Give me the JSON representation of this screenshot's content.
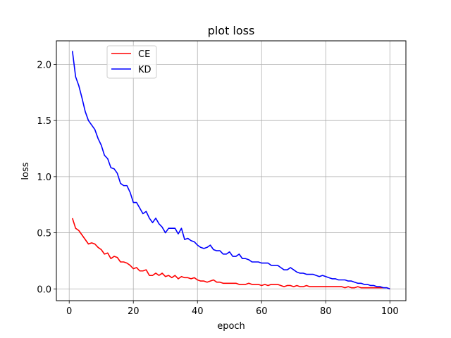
{
  "chart_data": {
    "type": "line",
    "title": "plot loss",
    "xlabel": "epoch",
    "ylabel": "loss",
    "xlim": [
      -4,
      105
    ],
    "ylim": [
      -0.105,
      2.21
    ],
    "x_ticks": [
      0,
      20,
      40,
      60,
      80,
      100
    ],
    "x_tick_labels": [
      "0",
      "20",
      "40",
      "60",
      "80",
      "100"
    ],
    "y_ticks": [
      0.0,
      0.5,
      1.0,
      1.5,
      2.0
    ],
    "y_tick_labels": [
      "0.0",
      "0.5",
      "1.0",
      "1.5",
      "2.0"
    ],
    "grid": true,
    "legend_position": "upper left",
    "series": [
      {
        "name": "CE",
        "color": "#ff0000",
        "x": [
          1,
          2,
          3,
          4,
          5,
          6,
          7,
          8,
          9,
          10,
          11,
          12,
          13,
          14,
          15,
          16,
          17,
          18,
          19,
          20,
          21,
          22,
          23,
          24,
          25,
          26,
          27,
          28,
          29,
          30,
          31,
          32,
          33,
          34,
          35,
          36,
          37,
          38,
          39,
          40,
          41,
          42,
          43,
          44,
          45,
          46,
          47,
          48,
          49,
          50,
          51,
          52,
          53,
          54,
          55,
          56,
          57,
          58,
          59,
          60,
          61,
          62,
          63,
          64,
          65,
          66,
          67,
          68,
          69,
          70,
          71,
          72,
          73,
          74,
          75,
          76,
          77,
          78,
          79,
          80,
          81,
          82,
          83,
          84,
          85,
          86,
          87,
          88,
          89,
          90,
          91,
          92,
          93,
          94,
          95,
          96,
          97,
          98,
          99,
          100
        ],
        "values": [
          0.63,
          0.54,
          0.52,
          0.48,
          0.44,
          0.4,
          0.41,
          0.4,
          0.37,
          0.35,
          0.31,
          0.32,
          0.27,
          0.29,
          0.28,
          0.24,
          0.24,
          0.23,
          0.21,
          0.18,
          0.19,
          0.16,
          0.16,
          0.17,
          0.12,
          0.12,
          0.14,
          0.12,
          0.14,
          0.11,
          0.12,
          0.1,
          0.12,
          0.09,
          0.11,
          0.1,
          0.1,
          0.09,
          0.1,
          0.08,
          0.07,
          0.07,
          0.06,
          0.07,
          0.08,
          0.06,
          0.06,
          0.05,
          0.05,
          0.05,
          0.05,
          0.05,
          0.04,
          0.04,
          0.04,
          0.05,
          0.04,
          0.04,
          0.04,
          0.03,
          0.04,
          0.03,
          0.04,
          0.04,
          0.04,
          0.03,
          0.02,
          0.03,
          0.03,
          0.02,
          0.03,
          0.02,
          0.02,
          0.03,
          0.02,
          0.02,
          0.02,
          0.02,
          0.02,
          0.02,
          0.02,
          0.02,
          0.02,
          0.02,
          0.02,
          0.01,
          0.02,
          0.01,
          0.01,
          0.02,
          0.01,
          0.01,
          0.01,
          0.01,
          0.01,
          0.01,
          0.01,
          0.01,
          0.01,
          0.0
        ]
      },
      {
        "name": "KD",
        "color": "#0000ff",
        "x": [
          1,
          2,
          3,
          4,
          5,
          6,
          7,
          8,
          9,
          10,
          11,
          12,
          13,
          14,
          15,
          16,
          17,
          18,
          19,
          20,
          21,
          22,
          23,
          24,
          25,
          26,
          27,
          28,
          29,
          30,
          31,
          32,
          33,
          34,
          35,
          36,
          37,
          38,
          39,
          40,
          41,
          42,
          43,
          44,
          45,
          46,
          47,
          48,
          49,
          50,
          51,
          52,
          53,
          54,
          55,
          56,
          57,
          58,
          59,
          60,
          61,
          62,
          63,
          64,
          65,
          66,
          67,
          68,
          69,
          70,
          71,
          72,
          73,
          74,
          75,
          76,
          77,
          78,
          79,
          80,
          81,
          82,
          83,
          84,
          85,
          86,
          87,
          88,
          89,
          90,
          91,
          92,
          93,
          94,
          95,
          96,
          97,
          98,
          99,
          100
        ],
        "values": [
          2.12,
          1.89,
          1.81,
          1.7,
          1.58,
          1.5,
          1.46,
          1.42,
          1.34,
          1.28,
          1.19,
          1.16,
          1.08,
          1.07,
          1.03,
          0.94,
          0.92,
          0.92,
          0.86,
          0.77,
          0.77,
          0.72,
          0.67,
          0.69,
          0.63,
          0.59,
          0.63,
          0.58,
          0.55,
          0.5,
          0.54,
          0.54,
          0.54,
          0.49,
          0.54,
          0.44,
          0.45,
          0.43,
          0.42,
          0.39,
          0.37,
          0.36,
          0.37,
          0.39,
          0.35,
          0.34,
          0.34,
          0.31,
          0.31,
          0.33,
          0.29,
          0.29,
          0.31,
          0.27,
          0.27,
          0.26,
          0.24,
          0.24,
          0.24,
          0.23,
          0.23,
          0.23,
          0.21,
          0.21,
          0.21,
          0.19,
          0.17,
          0.17,
          0.19,
          0.17,
          0.15,
          0.14,
          0.14,
          0.13,
          0.13,
          0.13,
          0.12,
          0.11,
          0.12,
          0.11,
          0.1,
          0.09,
          0.09,
          0.08,
          0.08,
          0.08,
          0.07,
          0.07,
          0.06,
          0.05,
          0.05,
          0.04,
          0.04,
          0.03,
          0.03,
          0.02,
          0.02,
          0.01,
          0.01,
          0.0
        ]
      }
    ]
  }
}
